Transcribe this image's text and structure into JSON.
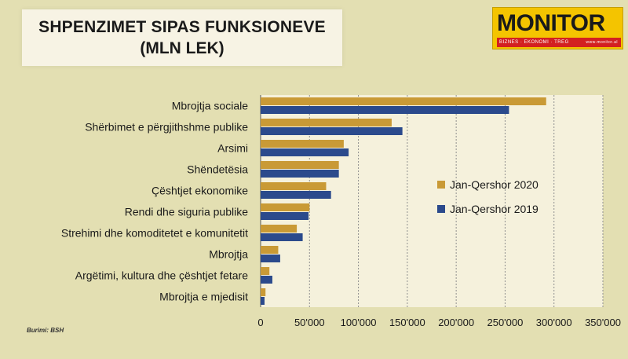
{
  "title": {
    "line1": "SHPENZIMET SIPAS FUNKSIONEVE",
    "line2": "(MLN LEK)"
  },
  "logo": {
    "word": "MONITOR",
    "tagline": "BIZNES · EKONOMI · TREG",
    "website": "www.monitor.al"
  },
  "source": "Burimi: BSH",
  "colors": {
    "series_2020": "#c99a36",
    "series_2019": "#2b4a8c",
    "plot_bg": "#f5f1dc",
    "grid": "#8f8f8f"
  },
  "chart_data": {
    "type": "bar",
    "orientation": "horizontal",
    "categories": [
      "Mbrojtja sociale",
      "Shërbimet e përgjithshme publike",
      "Arsimi",
      "Shëndetësia",
      "Çështjet ekonomike",
      "Rendi dhe siguria publike",
      "Strehimi dhe komoditetet e komunitetit",
      "Mbrojtja",
      "Argëtimi, kultura dhe çështjet fetare",
      "Mbrojtja e mjedisit"
    ],
    "series": [
      {
        "name": "Jan-Qershor 2020",
        "values": [
          292000,
          134000,
          85000,
          80000,
          67000,
          50000,
          37000,
          18000,
          9000,
          5000
        ]
      },
      {
        "name": "Jan-Qershor 2019",
        "values": [
          254000,
          145000,
          90000,
          80000,
          72000,
          49000,
          43000,
          20000,
          12000,
          4000
        ]
      }
    ],
    "x_ticks": [
      "0",
      "50'000",
      "100'000",
      "150'000",
      "200'000",
      "250'000",
      "300'000",
      "350'000"
    ],
    "xlim": [
      0,
      350000
    ],
    "grid": true,
    "legend_position": "right"
  }
}
